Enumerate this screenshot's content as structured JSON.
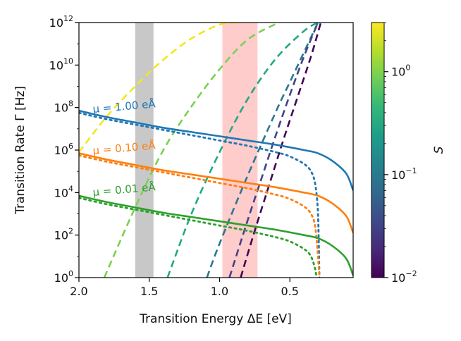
{
  "chart_data": {
    "type": "line",
    "title": "",
    "xlabel": "Transition Energy ΔE [eV]",
    "ylabel": "Transition Rate Γ [Hz]",
    "x_scale": "linear",
    "x_inverted": true,
    "xlim": [
      2.0,
      0.05
    ],
    "y_scale": "log",
    "ylim": [
      1,
      1000000000000.0
    ],
    "x_ticks": [
      {
        "value": 2.0,
        "label": "2.0"
      },
      {
        "value": 1.5,
        "label": "1.5"
      },
      {
        "value": 1.0,
        "label": "1.0"
      },
      {
        "value": 0.5,
        "label": "0.5"
      }
    ],
    "y_ticks": [
      {
        "exp": 0,
        "base": "10",
        "sup": "0"
      },
      {
        "exp": 2,
        "base": "10",
        "sup": "2"
      },
      {
        "exp": 4,
        "base": "10",
        "sup": "4"
      },
      {
        "exp": 6,
        "base": "10",
        "sup": "6"
      },
      {
        "exp": 8,
        "base": "10",
        "sup": "8"
      },
      {
        "exp": 10,
        "base": "10",
        "sup": "10"
      },
      {
        "exp": 12,
        "base": "10",
        "sup": "12"
      }
    ],
    "shaded_bands": [
      {
        "name": "gray-band",
        "x_from": 1.6,
        "x_to": 1.47,
        "color": "#c8c8c8"
      },
      {
        "name": "pink-band",
        "x_from": 0.98,
        "x_to": 0.73,
        "color": "#ffcccc"
      }
    ],
    "solid_series": [
      {
        "name": "mu-1.00",
        "mu_label": "μ = 1.00 eÅ",
        "color": "#1f77b4",
        "x": [
          2.0,
          1.8,
          1.6,
          1.4,
          1.2,
          1.0,
          0.8,
          0.6,
          0.4,
          0.3,
          0.2,
          0.1,
          0.05
        ],
        "log10_y": [
          7.85,
          7.55,
          7.3,
          7.05,
          6.85,
          6.65,
          6.45,
          6.25,
          6.0,
          5.85,
          5.5,
          4.9,
          4.1
        ]
      },
      {
        "name": "mu-0.10",
        "mu_label": "μ = 0.10 eÅ",
        "color": "#ff7f0e",
        "x": [
          2.0,
          1.8,
          1.6,
          1.4,
          1.2,
          1.0,
          0.8,
          0.6,
          0.4,
          0.3,
          0.2,
          0.1,
          0.05
        ],
        "log10_y": [
          5.85,
          5.55,
          5.3,
          5.05,
          4.85,
          4.65,
          4.45,
          4.25,
          4.0,
          3.85,
          3.5,
          2.9,
          2.1
        ]
      },
      {
        "name": "mu-0.01",
        "mu_label": "μ = 0.01 eÅ",
        "color": "#2ca02c",
        "x": [
          2.0,
          1.8,
          1.6,
          1.4,
          1.2,
          1.0,
          0.8,
          0.6,
          0.4,
          0.3,
          0.2,
          0.1,
          0.05
        ],
        "log10_y": [
          3.85,
          3.55,
          3.3,
          3.05,
          2.85,
          2.65,
          2.45,
          2.25,
          2.0,
          1.85,
          1.5,
          0.9,
          0.1
        ]
      }
    ],
    "dotted_series": [
      {
        "name": "mu-1.00-dotted",
        "color": "#1f77b4",
        "x": [
          2.0,
          1.8,
          1.6,
          1.4,
          1.2,
          1.0,
          0.8,
          0.6,
          0.5,
          0.4,
          0.35,
          0.32,
          0.3,
          0.29
        ],
        "log10_y": [
          7.75,
          7.45,
          7.2,
          6.95,
          6.7,
          6.45,
          6.2,
          5.9,
          5.7,
          5.35,
          5.0,
          4.4,
          3.0,
          0
        ]
      },
      {
        "name": "mu-0.10-dotted",
        "color": "#ff7f0e",
        "x": [
          2.0,
          1.8,
          1.6,
          1.4,
          1.2,
          1.0,
          0.8,
          0.6,
          0.5,
          0.4,
          0.35,
          0.32,
          0.3,
          0.29
        ],
        "log10_y": [
          5.75,
          5.45,
          5.2,
          4.95,
          4.7,
          4.45,
          4.2,
          3.9,
          3.7,
          3.35,
          3.0,
          2.4,
          1.0,
          0
        ]
      },
      {
        "name": "mu-0.01-dotted",
        "color": "#2ca02c",
        "x": [
          2.0,
          1.8,
          1.6,
          1.4,
          1.2,
          1.0,
          0.8,
          0.6,
          0.5,
          0.4,
          0.35,
          0.32,
          0.31
        ],
        "log10_y": [
          3.75,
          3.45,
          3.2,
          2.95,
          2.7,
          2.45,
          2.2,
          1.9,
          1.7,
          1.35,
          1.0,
          0.4,
          0
        ]
      }
    ],
    "dashed_series": [
      {
        "name": "S-2.0",
        "S": 2.0,
        "color": "#f4e61e",
        "x": [
          2.0,
          1.8,
          1.6,
          1.4,
          1.2,
          1.0,
          0.87
        ],
        "log10_y": [
          5.9,
          7.6,
          9.0,
          10.25,
          11.25,
          11.9,
          12.0
        ]
      },
      {
        "name": "S-0.6",
        "S": 0.6,
        "color": "#7ad151",
        "x": [
          1.82,
          1.6,
          1.4,
          1.2,
          1.0,
          0.8,
          0.58
        ],
        "log10_y": [
          0,
          3.3,
          6.0,
          8.05,
          9.8,
          11.2,
          12.0
        ]
      },
      {
        "name": "S-0.2",
        "S": 0.2,
        "color": "#22a884",
        "x": [
          1.37,
          1.2,
          1.0,
          0.8,
          0.6,
          0.4,
          0.3
        ],
        "log10_y": [
          0,
          3.0,
          5.9,
          8.4,
          10.3,
          11.6,
          12.0
        ]
      },
      {
        "name": "S-0.07",
        "S": 0.07,
        "color": "#2a788e",
        "x": [
          1.09,
          1.0,
          0.8,
          0.6,
          0.5,
          0.4,
          0.3
        ],
        "log10_y": [
          0,
          1.6,
          4.8,
          7.8,
          9.2,
          10.6,
          12.0
        ]
      },
      {
        "name": "S-0.025",
        "S": 0.025,
        "color": "#414487",
        "x": [
          0.93,
          0.8,
          0.7,
          0.6,
          0.5,
          0.4,
          0.3
        ],
        "log10_y": [
          0,
          2.7,
          4.7,
          6.7,
          8.6,
          10.4,
          12.0
        ]
      },
      {
        "name": "S-0.01",
        "S": 0.01,
        "color": "#440154",
        "x": [
          0.85,
          0.75,
          0.65,
          0.55,
          0.45,
          0.35,
          0.28
        ],
        "log10_y": [
          0,
          2.2,
          4.3,
          6.4,
          8.4,
          10.4,
          12.0
        ]
      }
    ],
    "colorbar": {
      "label": "S",
      "scale": "log",
      "range": [
        0.01,
        3.0
      ],
      "colormap": "viridis",
      "stops": [
        "#440154",
        "#482878",
        "#3e4989",
        "#31688e",
        "#26828e",
        "#1f9e89",
        "#35b779",
        "#6ece58",
        "#b5de2b",
        "#fde725"
      ],
      "ticks": [
        {
          "value": 0.01,
          "base": "10",
          "sup": "−2"
        },
        {
          "value": 0.1,
          "base": "10",
          "sup": "−1"
        },
        {
          "value": 1,
          "base": "10",
          "sup": "0"
        }
      ]
    }
  }
}
